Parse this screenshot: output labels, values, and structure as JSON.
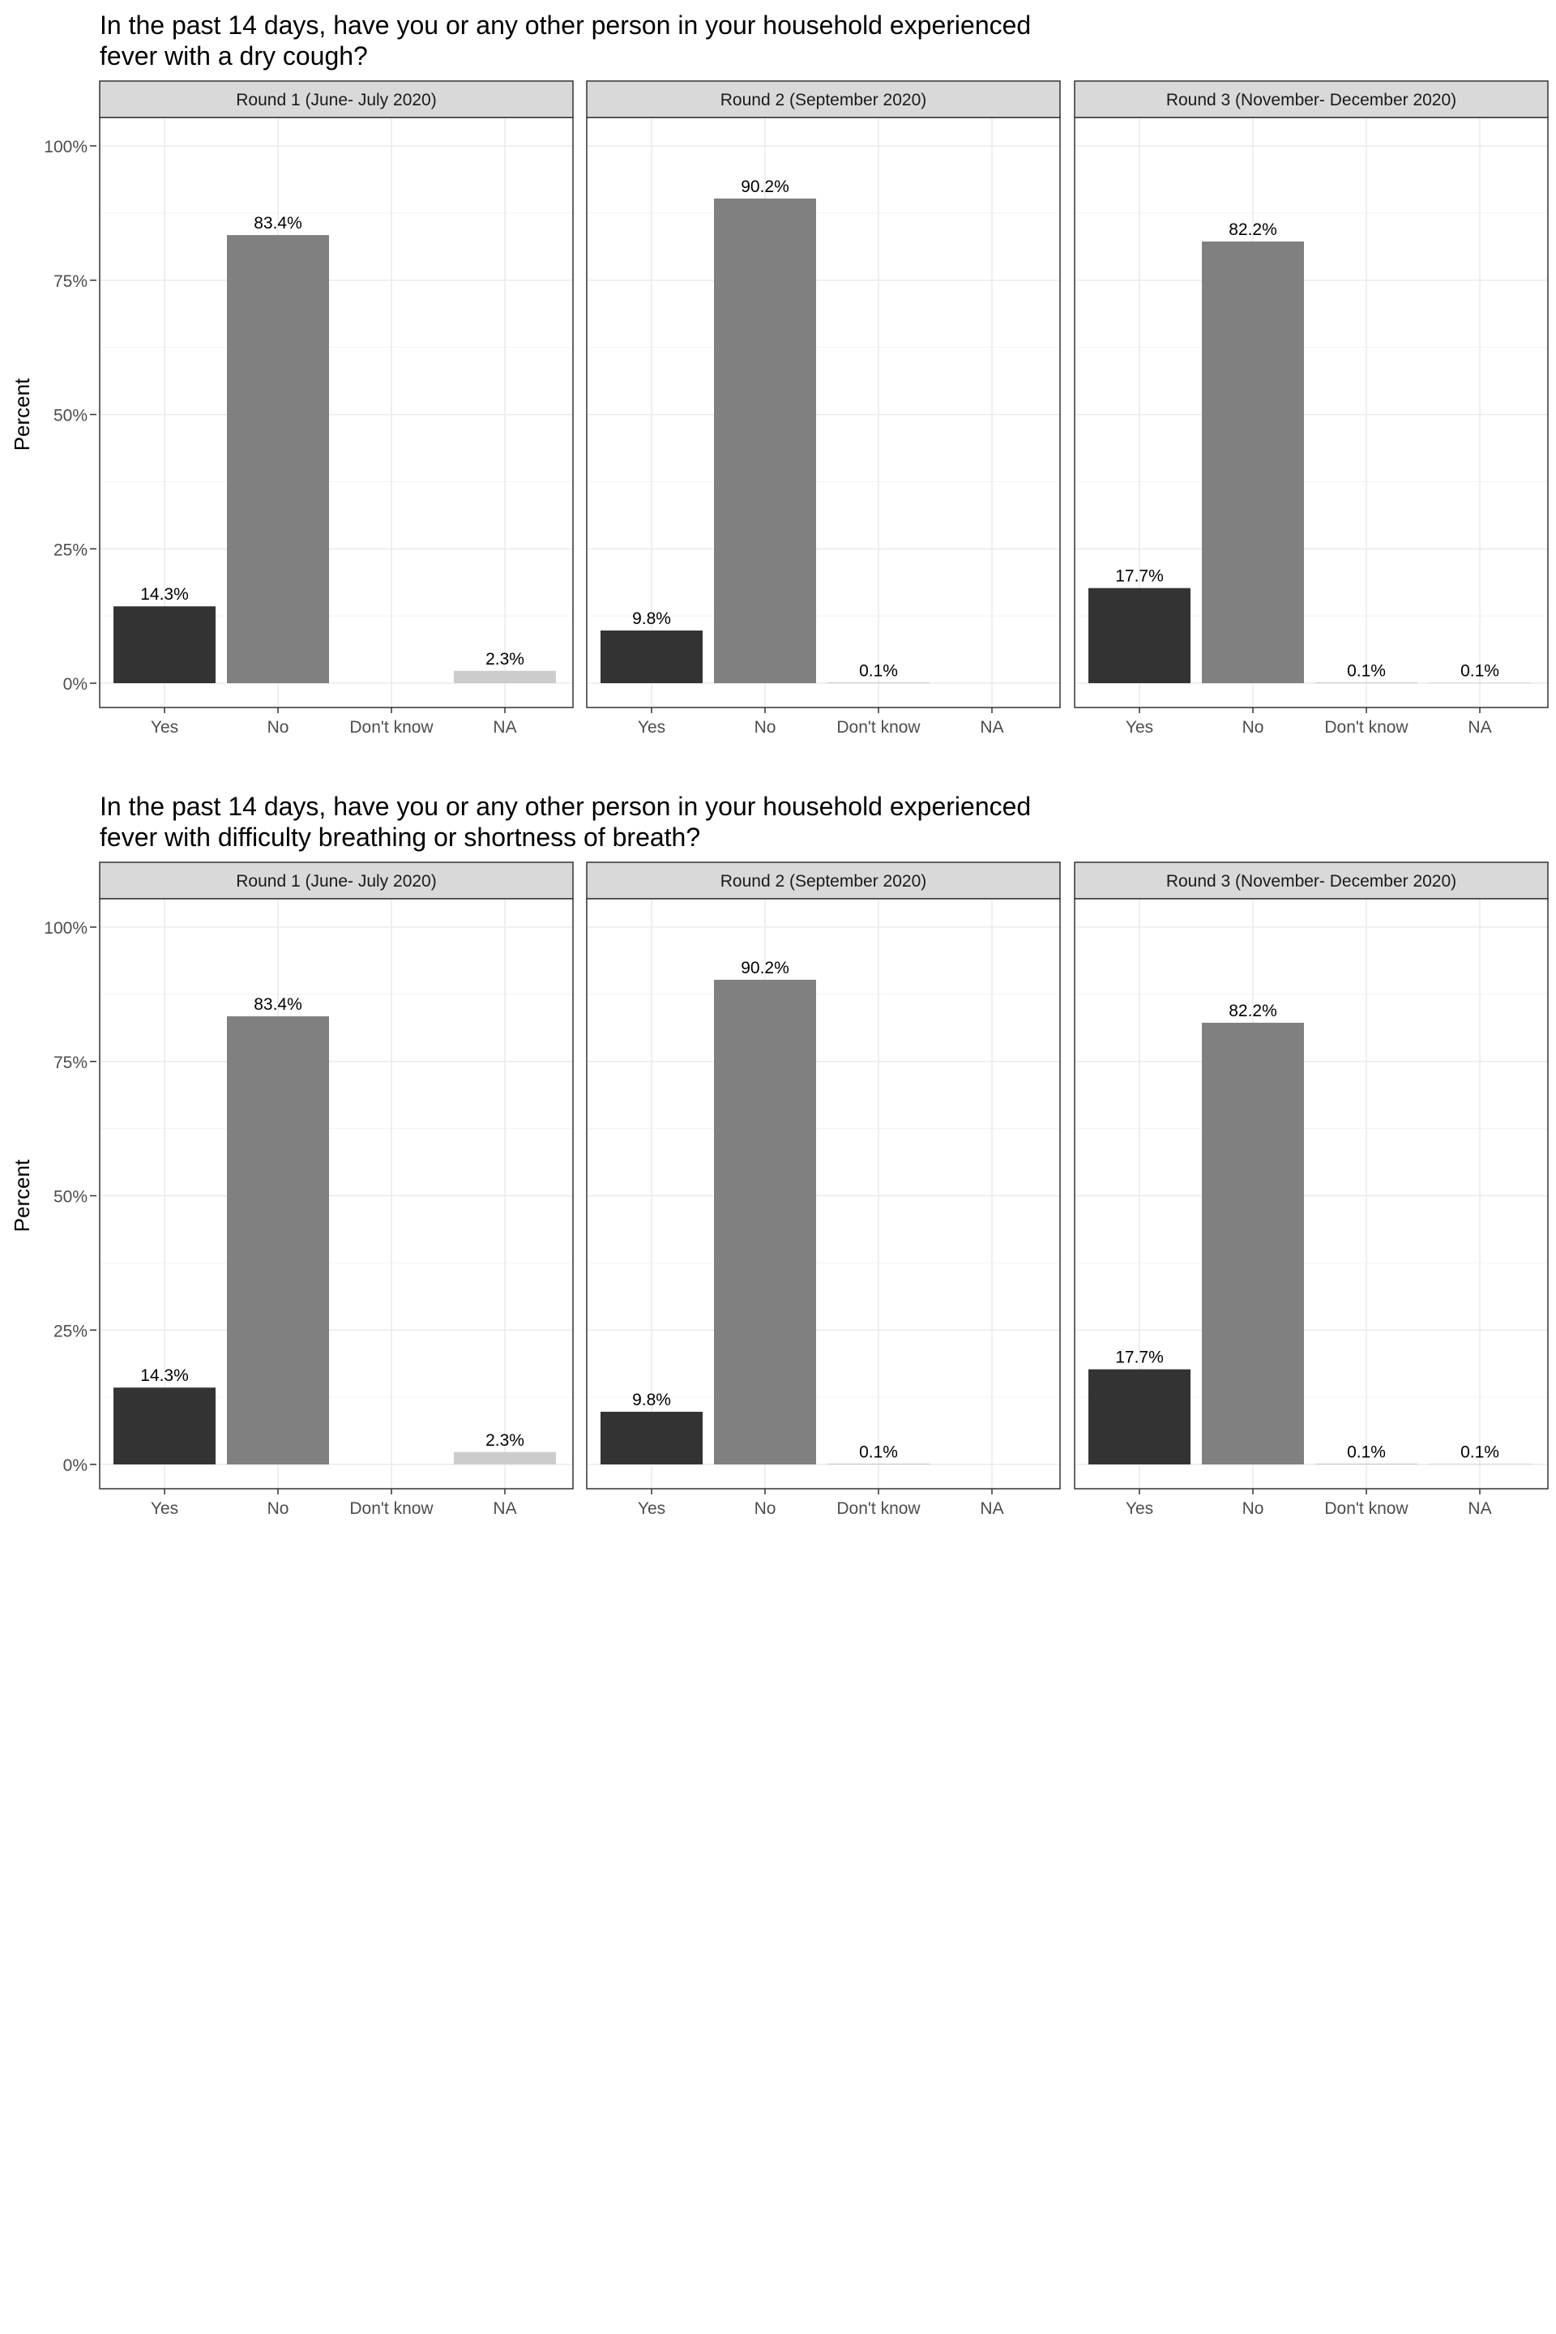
{
  "chart_data": [
    {
      "type": "bar",
      "title_lines": [
        "In the past 14 days, have you or any other person in your household experienced",
        "fever with a dry cough?"
      ],
      "ylabel": "Percent",
      "ylim": [
        0,
        100
      ],
      "yticks": [
        0,
        25,
        50,
        75,
        100
      ],
      "ytick_labels": [
        "0%",
        "25%",
        "50%",
        "75%",
        "100%"
      ],
      "categories": [
        "Yes",
        "No",
        "Don't know",
        "NA"
      ],
      "grid": true,
      "legend": "none",
      "colors": {
        "Yes": "#333333",
        "No": "#808080",
        "Don't know": "#b3b3b3",
        "NA": "#cccccc"
      },
      "panels": [
        {
          "name": "Round 1 (June- July 2020)",
          "values": [
            14.3,
            83.4,
            null,
            2.3
          ],
          "labels": [
            "14.3%",
            "83.4%",
            "",
            "2.3%"
          ]
        },
        {
          "name": "Round 2 (September 2020)",
          "values": [
            9.8,
            90.2,
            0.1,
            null
          ],
          "labels": [
            "9.8%",
            "90.2%",
            "0.1%",
            ""
          ]
        },
        {
          "name": "Round 3 (November- December 2020)",
          "values": [
            17.7,
            82.2,
            0.1,
            0.1
          ],
          "labels": [
            "17.7%",
            "82.2%",
            "0.1%",
            "0.1%"
          ]
        }
      ]
    },
    {
      "type": "bar",
      "title_lines": [
        "In the past 14 days, have you or any other person in your household experienced",
        "fever with difficulty breathing or shortness of breath?"
      ],
      "ylabel": "Percent",
      "ylim": [
        0,
        100
      ],
      "yticks": [
        0,
        25,
        50,
        75,
        100
      ],
      "ytick_labels": [
        "0%",
        "25%",
        "50%",
        "75%",
        "100%"
      ],
      "categories": [
        "Yes",
        "No",
        "Don't know",
        "NA"
      ],
      "grid": true,
      "legend": "none",
      "colors": {
        "Yes": "#333333",
        "No": "#808080",
        "Don't know": "#b3b3b3",
        "NA": "#cccccc"
      },
      "panels": [
        {
          "name": "Round 1 (June- July 2020)",
          "values": [
            14.3,
            83.4,
            null,
            2.3
          ],
          "labels": [
            "14.3%",
            "83.4%",
            "",
            "2.3%"
          ]
        },
        {
          "name": "Round 2 (September 2020)",
          "values": [
            9.8,
            90.2,
            0.1,
            null
          ],
          "labels": [
            "9.8%",
            "90.2%",
            "0.1%",
            ""
          ]
        },
        {
          "name": "Round 3 (November- December 2020)",
          "values": [
            17.7,
            82.2,
            0.1,
            0.1
          ],
          "labels": [
            "17.7%",
            "82.2%",
            "0.1%",
            "0.1%"
          ]
        }
      ]
    }
  ]
}
